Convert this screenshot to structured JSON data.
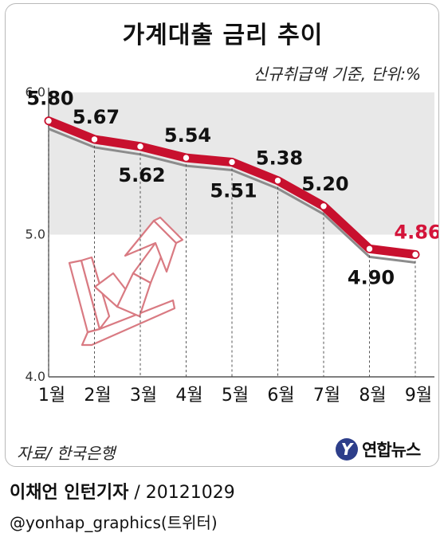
{
  "header": {
    "title": "가계대출 금리 추이",
    "subtitle": "신규취급액 기준, 단위:%"
  },
  "footer": {
    "source": "자료/ 한국은행",
    "logo_letter": "Y",
    "logo_text": "연합뉴스",
    "reporter": "이채언 인턴기자",
    "date": " / 20121029",
    "handle": "@yonhap_graphics(트위터)"
  },
  "colors": {
    "line": "#c8102e",
    "shadow_line": "#8c8c8c",
    "band": "#e8e8e8",
    "last_label": "#d4143a"
  },
  "chart_data": {
    "type": "line",
    "categories": [
      "1월",
      "2월",
      "3월",
      "4월",
      "5월",
      "6월",
      "7월",
      "8월",
      "9월"
    ],
    "series": [
      {
        "name": "",
        "values": [
          5.8,
          5.67,
          5.62,
          5.54,
          5.51,
          5.38,
          5.2,
          4.9,
          4.86
        ]
      }
    ],
    "value_labels": [
      "5.80",
      "5.67",
      "5.62",
      "5.54",
      "5.51",
      "5.38",
      "5.20",
      "4.90",
      "4.86"
    ],
    "label_position": [
      "above",
      "above",
      "below",
      "above",
      "below",
      "above",
      "above",
      "below",
      "above"
    ],
    "yticks": [
      "6.0",
      "5.0",
      "4.0"
    ],
    "ylim": [
      4.0,
      6.0
    ],
    "grid": false,
    "legend": "none"
  }
}
